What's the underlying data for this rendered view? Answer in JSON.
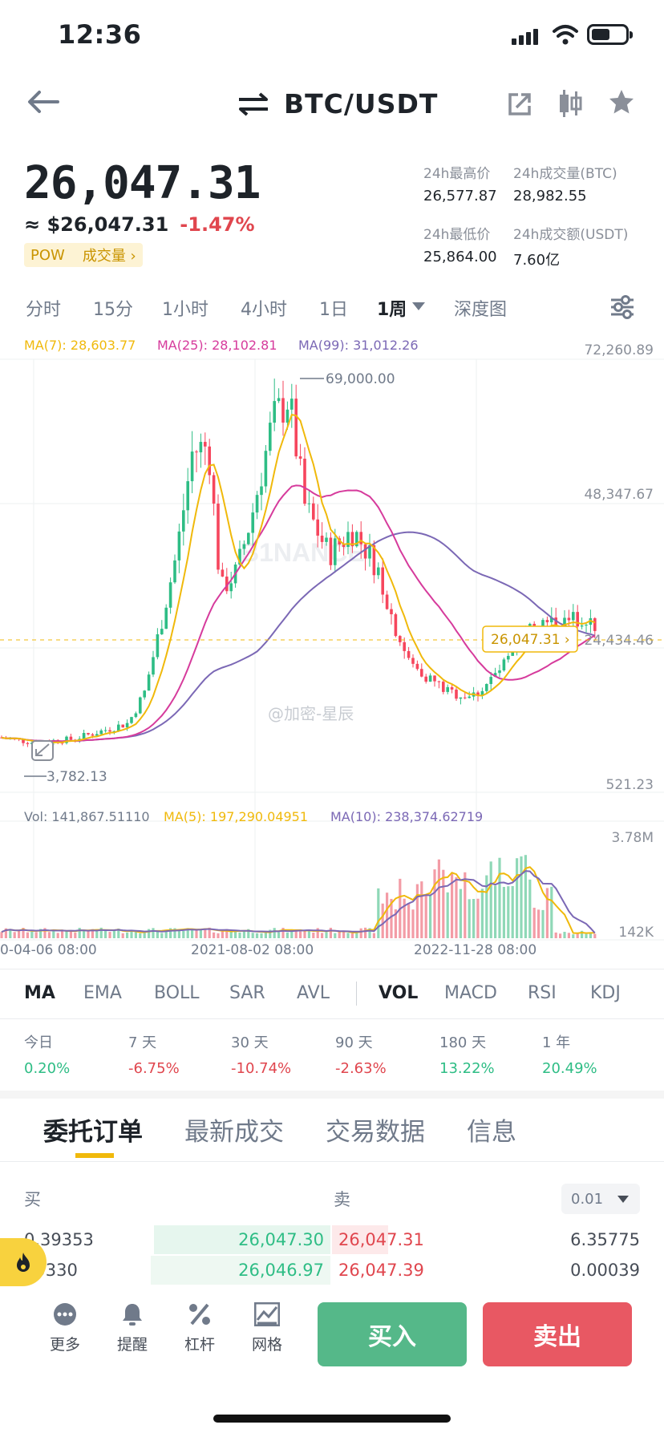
{
  "status_bar": {
    "time": "12:36"
  },
  "header": {
    "pair": "BTC/USDT"
  },
  "price": {
    "last": "26,047.31",
    "usd": "≈ $26,047.31",
    "change": "-1.47%",
    "tag_pow": "POW",
    "tag_volume": "成交量 ›"
  },
  "stats": {
    "high_label": "24h最高价",
    "high_value": "26,577.87",
    "vol_btc_label": "24h成交量(BTC)",
    "vol_btc_value": "28,982.55",
    "low_label": "24h最低价",
    "low_value": "25,864.00",
    "vol_usdt_label": "24h成交额(USDT)",
    "vol_usdt_value": "7.60亿"
  },
  "intervals": [
    "分时",
    "15分",
    "1小时",
    "4小时",
    "1日",
    "1周",
    "深度图"
  ],
  "active_interval": "1周",
  "chart": {
    "ma7_legend": "MA(7): 28,603.77",
    "ma25_legend": "MA(25): 28,102.81",
    "ma99_legend": "MA(99): 31,012.26",
    "y_top": "72,260.89",
    "y_mid": "48,347.67",
    "y_cur": "24,434.46",
    "y_bottom": "521.23",
    "high_marker": "69,000.00",
    "low_marker": "3,782.13",
    "current_price_tag": "26,047.31 ›",
    "watermark": "@加密-星辰",
    "vol_legend": "Vol: 141,867.51110",
    "vol_ma5_legend": "MA(5): 197,290.04951",
    "vol_ma10_legend": "MA(10): 238,374.62719",
    "vol_top": "3.78M",
    "vol_bottom": "142K",
    "x_labels": [
      "0-04-06 08:00",
      "2021-08-02 08:00",
      "2022-11-28 08:00"
    ],
    "colors": {
      "up": "#2ebd85",
      "down": "#f6465d",
      "ma7": "#f0b90b",
      "ma25": "#d63b9c",
      "ma99": "#7b68b5"
    }
  },
  "chart_data": {
    "type": "candlestick",
    "interval": "1周",
    "high": 69000.0,
    "low": 3782.13,
    "last": 26047.31,
    "ylim": [
      521.23,
      72260.89
    ],
    "ma": [
      {
        "name": "MA(7)",
        "value": 28603.77
      },
      {
        "name": "MA(25)",
        "value": 28102.81
      },
      {
        "name": "MA(99)",
        "value": 31012.26
      }
    ],
    "volume": {
      "current": 141867.5111,
      "ma5": 197290.04951,
      "ma10": 238374.62719,
      "ylim": [
        "142K",
        "3.78M"
      ]
    },
    "x_ticks": [
      "0-04-06 08:00",
      "2021-08-02 08:00",
      "2022-11-28 08:00"
    ]
  },
  "indicator_tabs": [
    "MA",
    "EMA",
    "BOLL",
    "SAR",
    "AVL",
    "VOL",
    "MACD",
    "RSI",
    "KDJ"
  ],
  "performance": [
    {
      "label": "今日",
      "value": "0.20%",
      "color": "#2ebd85"
    },
    {
      "label": "7 天",
      "value": "-6.75%",
      "color": "#e0464e"
    },
    {
      "label": "30 天",
      "value": "-10.74%",
      "color": "#e0464e"
    },
    {
      "label": "90 天",
      "value": "-2.63%",
      "color": "#e0464e"
    },
    {
      "label": "180 天",
      "value": "13.22%",
      "color": "#2ebd85"
    },
    {
      "label": "1 年",
      "value": "20.49%",
      "color": "#2ebd85"
    }
  ],
  "orderbook": {
    "tabs": [
      "委托订单",
      "最新成交",
      "交易数据",
      "信息"
    ],
    "buy_label": "买",
    "sell_label": "卖",
    "precision": "0.01",
    "rows": [
      {
        "bid_qty": "0.39353",
        "bid_price": "26,047.30",
        "ask_price": "26,047.31",
        "ask_qty": "6.35775"
      },
      {
        "bid_qty": "25330",
        "bid_price": "26,046.97",
        "ask_price": "26,047.39",
        "ask_qty": "0.00039"
      }
    ]
  },
  "bottom": {
    "more": "更多",
    "alert": "提醒",
    "leverage": "杠杆",
    "grid": "网格",
    "buy": "买入",
    "sell": "卖出"
  }
}
